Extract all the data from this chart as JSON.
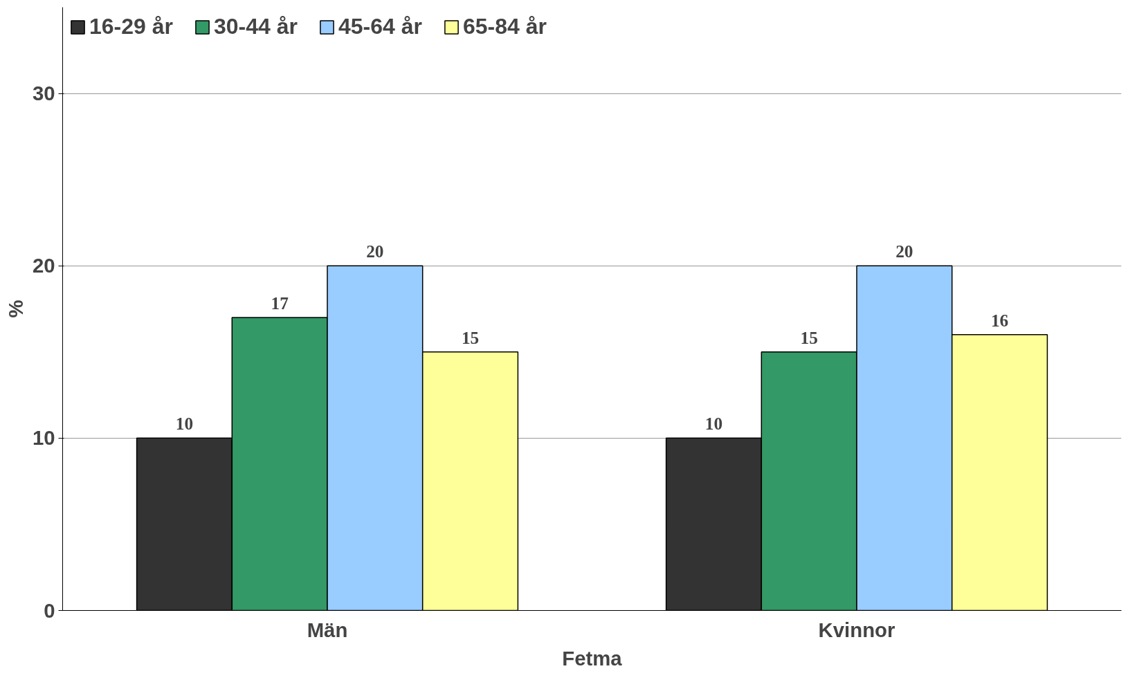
{
  "chart_data": {
    "type": "bar",
    "xlabel": "Fetma",
    "ylabel": "%",
    "categories": [
      "Män",
      "Kvinnor"
    ],
    "series": [
      {
        "name": "16-29 år",
        "color": "#333333",
        "values": [
          10,
          10
        ]
      },
      {
        "name": "30-44 år",
        "color": "#339966",
        "values": [
          17,
          15
        ]
      },
      {
        "name": "45-64 år",
        "color": "#99ccff",
        "values": [
          20,
          20
        ]
      },
      {
        "name": "65-84 år",
        "color": "#ffff99",
        "values": [
          15,
          16
        ]
      }
    ],
    "ylim": [
      0,
      35
    ],
    "yticks": [
      0,
      10,
      20,
      30
    ],
    "grid": "y",
    "legend": "top left",
    "data_labels": true
  }
}
